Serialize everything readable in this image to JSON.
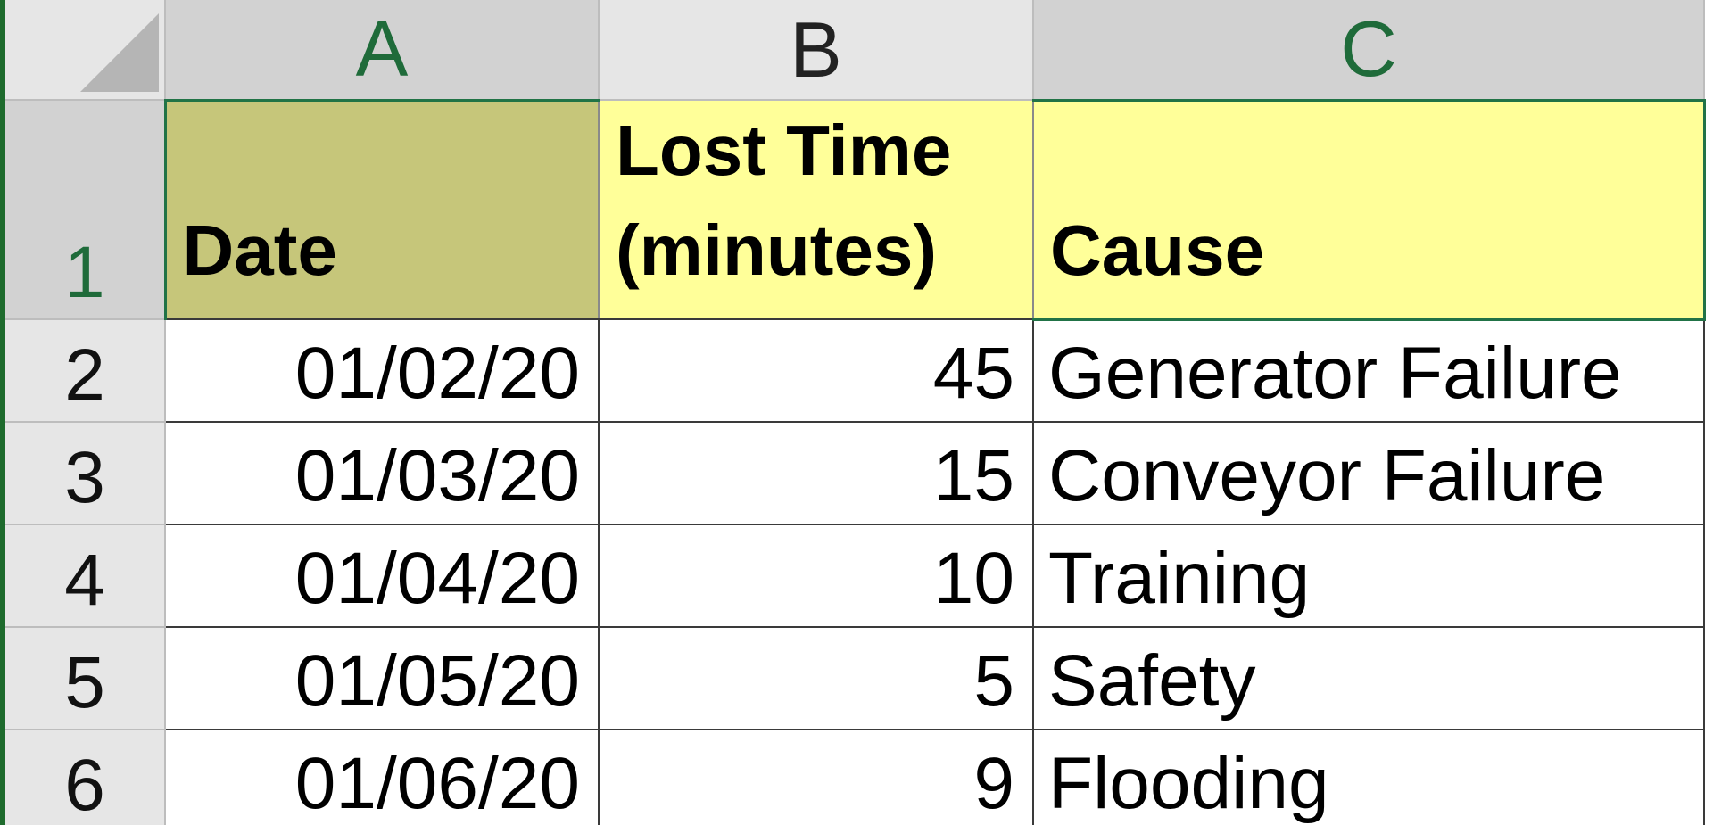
{
  "columns": {
    "A": "A",
    "B": "B",
    "C": "C"
  },
  "rows": [
    "1",
    "2",
    "3",
    "4",
    "5",
    "6"
  ],
  "headers": {
    "date": "Date",
    "lost_time_line1": "Lost Time",
    "lost_time_line2": "(minutes)",
    "cause": "Cause"
  },
  "records": [
    {
      "date": "01/02/20",
      "lost_time": "45",
      "cause": "Generator Failure"
    },
    {
      "date": "01/03/20",
      "lost_time": "15",
      "cause": "Conveyor Failure"
    },
    {
      "date": "01/04/20",
      "lost_time": "10",
      "cause": "Training"
    },
    {
      "date": "01/05/20",
      "lost_time": "5",
      "cause": "Safety"
    },
    {
      "date": "01/06/20",
      "lost_time": "9",
      "cause": "Flooding"
    }
  ],
  "colors": {
    "date_header_fill": "#c6c67a",
    "lost_time_header_fill": "#ffff99",
    "cause_header_fill": "#ffff99",
    "selection_accent": "#217346"
  }
}
